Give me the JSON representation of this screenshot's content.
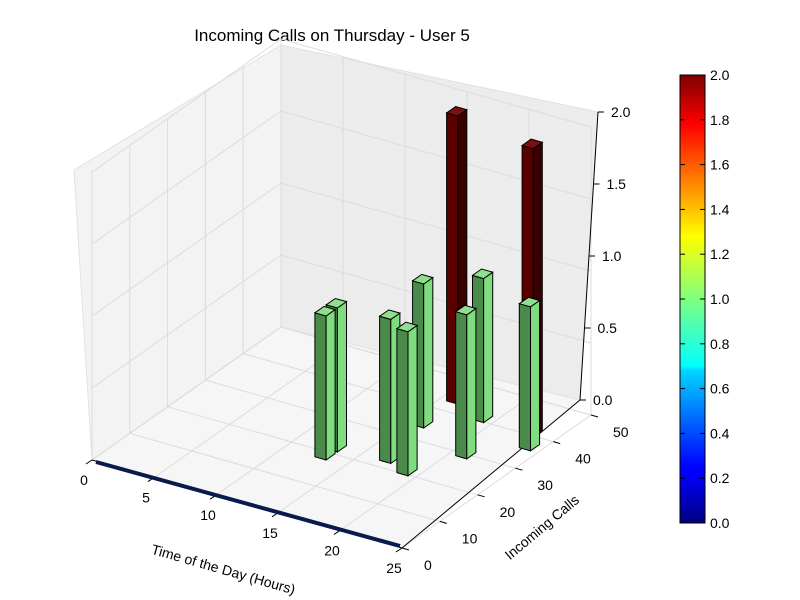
{
  "chart_data": {
    "type": "bar3d",
    "title": "Incoming Calls on Thursday - User 5",
    "xlabel": "Time of the Day (Hours)",
    "ylabel": "Incoming Calls",
    "zlabel": "",
    "xlim": [
      0,
      25
    ],
    "ylim": [
      0,
      50
    ],
    "zlim": [
      0,
      2.0
    ],
    "xticks": [
      "0",
      "5",
      "10",
      "15",
      "20",
      "25"
    ],
    "yticks": [
      "0",
      "10",
      "20",
      "30",
      "40",
      "50"
    ],
    "zticks": [
      "0.0",
      "0.5",
      "1.0",
      "1.5",
      "2.0"
    ],
    "colorbar": {
      "min": 0.0,
      "max": 2.0,
      "colormap": "jet",
      "ticks": [
        "0.0",
        "0.2",
        "0.4",
        "0.6",
        "0.8",
        "1.0",
        "1.2",
        "1.4",
        "1.6",
        "1.8",
        "2.0"
      ]
    },
    "bars": [
      {
        "x": 16,
        "y": 44,
        "z": 2.0
      },
      {
        "x": 16,
        "y": 35,
        "z": 1.0
      },
      {
        "x": 13,
        "y": 22,
        "z": 1.0
      },
      {
        "x": 13,
        "y": 19,
        "z": 1.0
      },
      {
        "x": 19,
        "y": 41,
        "z": 1.0
      },
      {
        "x": 17,
        "y": 23,
        "z": 1.0
      },
      {
        "x": 19,
        "y": 21,
        "z": 1.0
      },
      {
        "x": 21,
        "y": 30,
        "z": 1.0
      },
      {
        "x": 23,
        "y": 41,
        "z": 2.0
      },
      {
        "x": 24,
        "y": 37,
        "z": 1.0
      }
    ],
    "grid": true
  }
}
